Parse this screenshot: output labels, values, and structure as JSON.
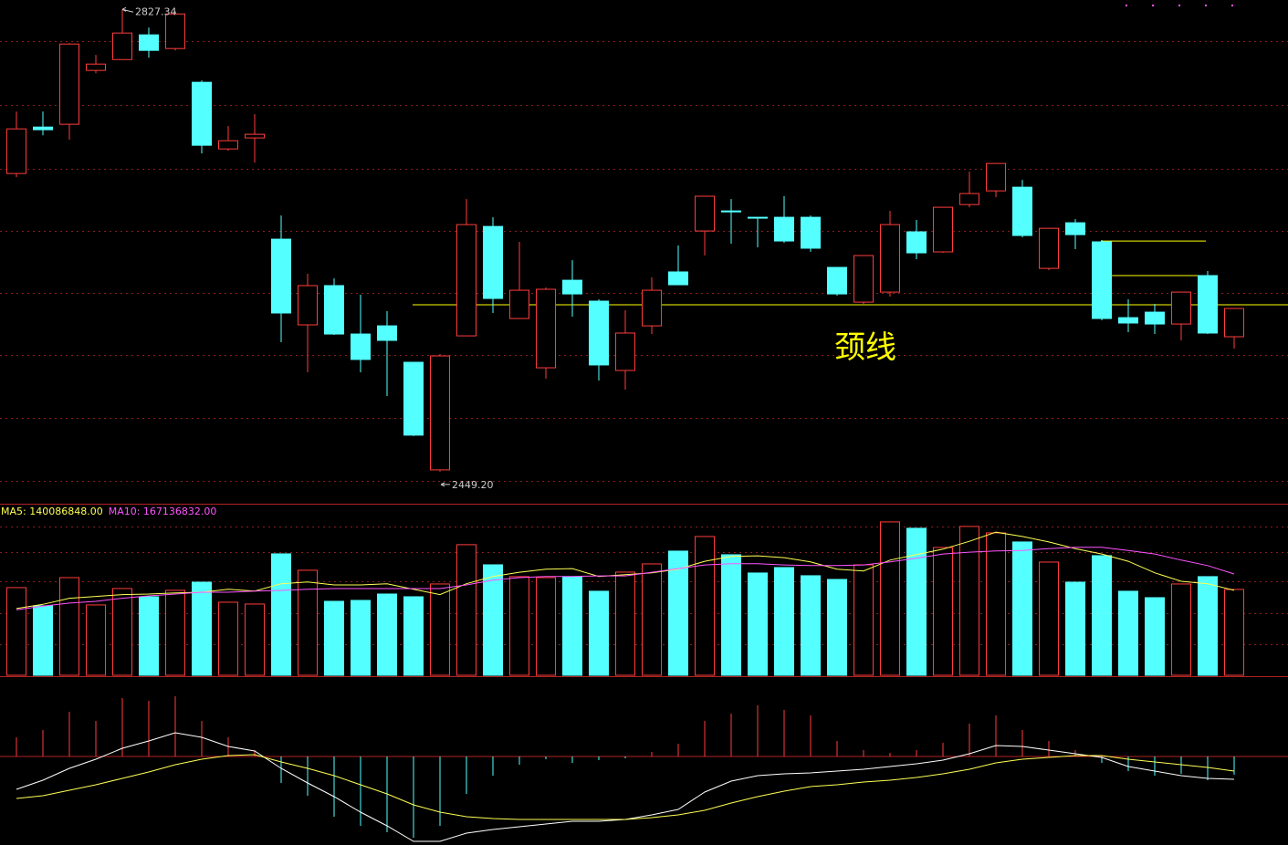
{
  "chart_data": [
    {
      "type": "candlestick",
      "up_color": "#ff3c3c",
      "down_color": "#54ffff",
      "open": [
        2693.1,
        2731.1,
        2733.4,
        2777.4,
        2786.3,
        2806.5,
        2795.3,
        2767.7,
        2713.2,
        2722.2,
        2639.4,
        2569.3,
        2601.4,
        2561.8,
        2568.5,
        2538.7,
        2450.7,
        2560.3,
        2649.8,
        2574.5,
        2534.2,
        2605.8,
        2588.7,
        2532.0,
        2568.5,
        2612.6,
        2646.1,
        2662.5,
        2657.3,
        2657.3,
        2657.3,
        2616.3,
        2587.9,
        2596.1,
        2645.4,
        2629.0,
        2667.7,
        2678.9,
        2681.9,
        2615.5,
        2652.8,
        2637.2,
        2575.2,
        2579.7,
        2570.0,
        2609.6,
        2559.6
      ],
      "high": [
        2743.8,
        2743.8,
        2799.7,
        2790.1,
        2827.34,
        2812.4,
        2825.9,
        2769.2,
        2731.9,
        2741.6,
        2658.8,
        2611.1,
        2607.3,
        2593.9,
        2580.5,
        2538.7,
        2545.4,
        2672.2,
        2657.3,
        2637.2,
        2599.9,
        2622.2,
        2590.2,
        2581.2,
        2608.1,
        2634.2,
        2674.5,
        2672.2,
        2657.3,
        2674.5,
        2658.8,
        2616.3,
        2626.0,
        2662.5,
        2655.1,
        2665.5,
        2694.6,
        2701.3,
        2687.9,
        2648.3,
        2655.8,
        2638.7,
        2590.2,
        2586.5,
        2596.1,
        2613.3,
        2582.7
      ],
      "low": [
        2690.1,
        2724.4,
        2720.7,
        2775.1,
        2786.3,
        2787.8,
        2793.8,
        2709.5,
        2711.7,
        2702.0,
        2555.1,
        2530.5,
        2561.1,
        2530.5,
        2511.1,
        2478.3,
        2449.2,
        2560.3,
        2579.0,
        2574.5,
        2525.3,
        2576.0,
        2523.8,
        2516.3,
        2561.8,
        2602.1,
        2626.0,
        2635.7,
        2632.7,
        2636.4,
        2629.0,
        2593.2,
        2586.5,
        2592.4,
        2623.0,
        2628.2,
        2665.5,
        2673.7,
        2640.9,
        2614.0,
        2631.2,
        2573.0,
        2563.3,
        2561.8,
        2556.6,
        2561.8,
        2549.9
      ],
      "close": [
        2729.6,
        2728.9,
        2799.0,
        2782.6,
        2808.0,
        2793.8,
        2823.6,
        2716.2,
        2719.9,
        2725.2,
        2579.0,
        2601.4,
        2561.8,
        2541.0,
        2556.6,
        2479.1,
        2543.9,
        2651.3,
        2590.9,
        2597.6,
        2598.4,
        2594.6,
        2536.5,
        2562.6,
        2597.6,
        2602.1,
        2674.5,
        2661.7,
        2656.6,
        2637.9,
        2632.0,
        2594.6,
        2626.0,
        2651.3,
        2628.2,
        2665.5,
        2676.7,
        2701.3,
        2642.4,
        2648.3,
        2643.1,
        2574.5,
        2570.8,
        2570.0,
        2596.1,
        2562.6,
        2582.7
      ],
      "ylim": [
        2426,
        2835
      ],
      "high_label": 2827.34,
      "low_label": {
        "value": 2449.2,
        "label": "2449.20"
      },
      "neckline": {
        "value": 2585.7,
        "label": "颈线",
        "color": "#ffff00"
      },
      "levels": [
        2637.9,
        2609.6
      ]
    },
    {
      "type": "volume",
      "values": [
        144600000,
        114500000,
        161100000,
        116000000,
        143100000,
        129500000,
        140100000,
        153600000,
        120500000,
        117500000,
        200300000,
        173200000,
        122000000,
        123500000,
        134000000,
        129500000,
        150600000,
        215400000,
        182200000,
        162700000,
        161100000,
        162700000,
        138600000,
        170200000,
        183700000,
        204800000,
        228900000,
        198800000,
        168700000,
        177700000,
        164200000,
        158100000,
        182200000,
        253000000,
        242500000,
        210800000,
        245500000,
        234900000,
        219900000,
        186700000,
        153600000,
        197300000,
        138600000,
        128000000,
        150600000,
        162700000,
        141600000
      ],
      "ylim": [
        0,
        283000000
      ],
      "series": [
        {
          "name": "MA5: 140086848.00",
          "color": "#ffff54",
          "values": [
            110000000,
            117000000,
            127000000,
            130000000,
            133000000,
            134000000,
            136000000,
            137000000,
            142000000,
            139000000,
            151000000,
            154000000,
            149000000,
            149000000,
            151000000,
            142000000,
            133000000,
            151000000,
            163000000,
            170000000,
            175000000,
            176000000,
            163000000,
            166000000,
            169000000,
            175000000,
            188000000,
            196000000,
            197000000,
            194000000,
            187000000,
            175000000,
            172000000,
            190000000,
            199000000,
            208000000,
            221000000,
            236000000,
            229000000,
            220000000,
            209000000,
            200000000,
            188000000,
            169000000,
            155000000,
            151000000,
            140086848
          ]
        },
        {
          "name": "MA10: 167136832.00",
          "color": "#ff54ff",
          "values": [
            108000000,
            114000000,
            119000000,
            122000000,
            127000000,
            131000000,
            134000000,
            137000000,
            137000000,
            139000000,
            140000000,
            142000000,
            143000000,
            143000000,
            143000000,
            143000000,
            143000000,
            149000000,
            157000000,
            161000000,
            163000000,
            163000000,
            164000000,
            164000000,
            170000000,
            176000000,
            182000000,
            184000000,
            184000000,
            182000000,
            181000000,
            181000000,
            182000000,
            187000000,
            193000000,
            200000000,
            203000000,
            205000000,
            206000000,
            209000000,
            211000000,
            211000000,
            206000000,
            200000000,
            190000000,
            181000000,
            167136832
          ]
        }
      ]
    },
    {
      "type": "macd",
      "ylim": [
        -48.5,
        34.5
      ],
      "histogram": [
        10.5,
        14.5,
        24.5,
        19.5,
        32,
        30.5,
        33,
        19.5,
        10.5,
        3.5,
        -14.5,
        -21.5,
        -33,
        -38,
        -41.5,
        -44.5,
        -38,
        -20.5,
        -10.5,
        -4.5,
        -1.5,
        -3.5,
        -2,
        -1,
        2.5,
        7,
        19.5,
        23.5,
        28,
        25.5,
        22.5,
        8.5,
        3.5,
        2,
        3.5,
        7.5,
        18,
        22.5,
        14.5,
        8.5,
        3.5,
        -3.5,
        -8,
        -10.5,
        -9.5,
        -13,
        -10
      ],
      "series": [
        {
          "color": "#ffffff",
          "values": [
            -18,
            -13,
            -6.5,
            -1.5,
            4.5,
            8.5,
            13,
            10.5,
            5.5,
            3,
            -6.5,
            -14.5,
            -22,
            -30.5,
            -38,
            -46.5,
            -46.5,
            -42,
            -40,
            -38.5,
            -37,
            -35.5,
            -35.5,
            -34.5,
            -32,
            -29,
            -19.5,
            -13.5,
            -10.5,
            -9.5,
            -9,
            -8,
            -7,
            -5.5,
            -4,
            -2,
            1.5,
            6,
            5.5,
            3.5,
            1.5,
            -0.5,
            -5.5,
            -8,
            -10.5,
            -12,
            -12.5
          ]
        },
        {
          "color": "#ffff54",
          "values": [
            -23,
            -21.5,
            -18.5,
            -15.5,
            -12,
            -8.5,
            -4.5,
            -1.5,
            0.5,
            1,
            -3,
            -6.5,
            -10.5,
            -15.5,
            -20.5,
            -26.5,
            -30.5,
            -33,
            -34,
            -34.5,
            -34.5,
            -34.5,
            -34.5,
            -34.5,
            -33.5,
            -32,
            -29.5,
            -25.5,
            -22,
            -19,
            -16.5,
            -15.5,
            -14,
            -13,
            -11.5,
            -9.5,
            -7,
            -3.5,
            -1.5,
            -0.5,
            0.5,
            0.5,
            -1.5,
            -3,
            -4.5,
            -6,
            -8
          ]
        }
      ]
    }
  ]
}
